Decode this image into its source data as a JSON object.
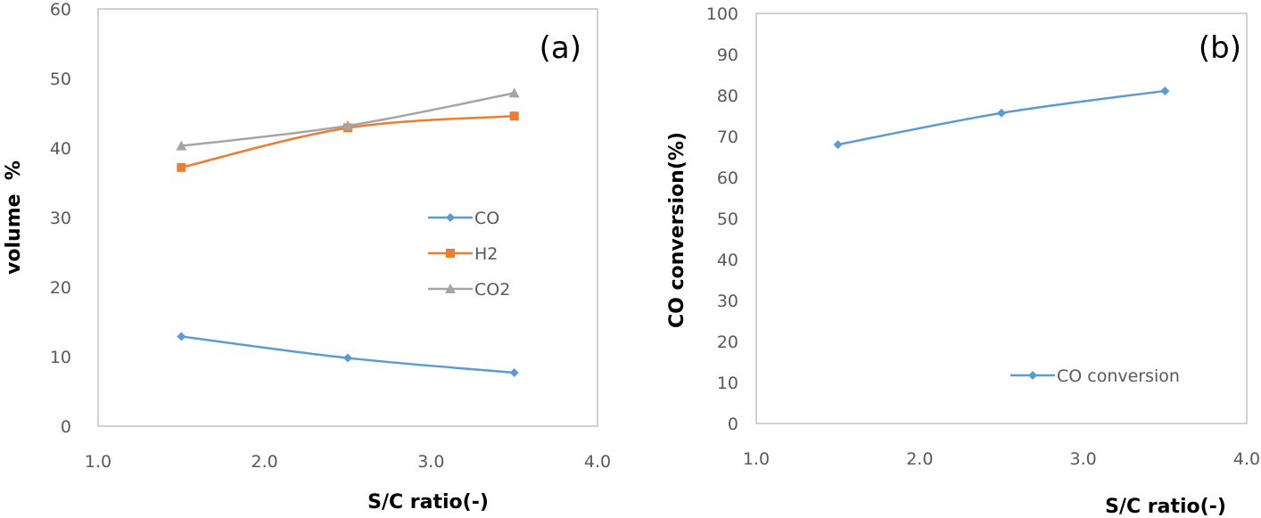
{
  "chart_data": [
    {
      "type": "line",
      "panel_label": "(a)",
      "xlabel": "S/C ratio(-)",
      "ylabel": "volume  %",
      "xlim": [
        1.0,
        4.0
      ],
      "ylim": [
        0,
        60
      ],
      "x_ticks": [
        "1.0",
        "2.0",
        "3.0",
        "4.0"
      ],
      "y_ticks": [
        "0",
        "10",
        "20",
        "30",
        "40",
        "50",
        "60"
      ],
      "grid": false,
      "legend_position": "right-center",
      "series": [
        {
          "name": "CO",
          "color": "#5b9bd5",
          "marker": "diamond",
          "x": [
            1.5,
            2.5,
            3.5
          ],
          "values": [
            12.9,
            9.8,
            7.7
          ]
        },
        {
          "name": "H2",
          "color": "#ed7d31",
          "marker": "square",
          "x": [
            1.5,
            2.5,
            3.5
          ],
          "values": [
            37.2,
            42.9,
            44.6
          ]
        },
        {
          "name": "CO2",
          "color": "#a5a5a5",
          "marker": "triangle",
          "x": [
            1.5,
            2.5,
            3.5
          ],
          "values": [
            40.3,
            43.2,
            47.9
          ]
        }
      ]
    },
    {
      "type": "line",
      "panel_label": "(b)",
      "xlabel": "S/C ratio(-)",
      "ylabel": "CO conversion(%)",
      "xlim": [
        1.0,
        4.0
      ],
      "ylim": [
        0,
        100
      ],
      "x_ticks": [
        "1.0",
        "2.0",
        "3.0",
        "4.0"
      ],
      "y_ticks": [
        "0",
        "10",
        "20",
        "30",
        "40",
        "50",
        "60",
        "70",
        "80",
        "90",
        "100"
      ],
      "grid": false,
      "legend_position": "bottom-right",
      "series": [
        {
          "name": "CO conversion",
          "color": "#5b9bd5",
          "marker": "diamond",
          "x": [
            1.5,
            2.5,
            3.5
          ],
          "values": [
            68.0,
            75.7,
            81.1
          ]
        }
      ]
    }
  ]
}
